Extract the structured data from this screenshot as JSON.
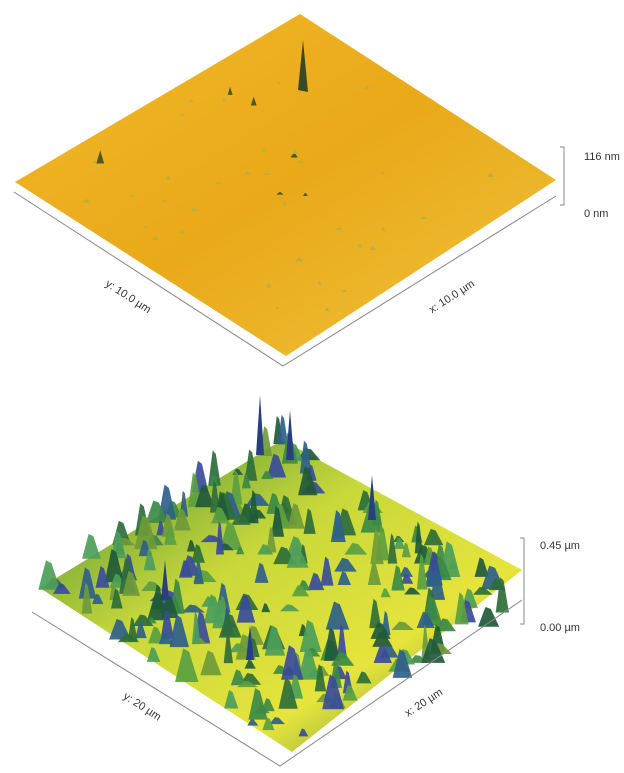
{
  "top_image": {
    "z_max_label": "116 nm",
    "z_min_label": "0 nm",
    "y_axis_label": "y: 10.0 µm",
    "x_axis_label": "x: 10.0 µm"
  },
  "bottom_image": {
    "z_max_label": "0.45 µm",
    "z_min_label": "0.00 µm",
    "y_axis_label": "y: 20 µm",
    "x_axis_label": "x: 20 µm"
  }
}
